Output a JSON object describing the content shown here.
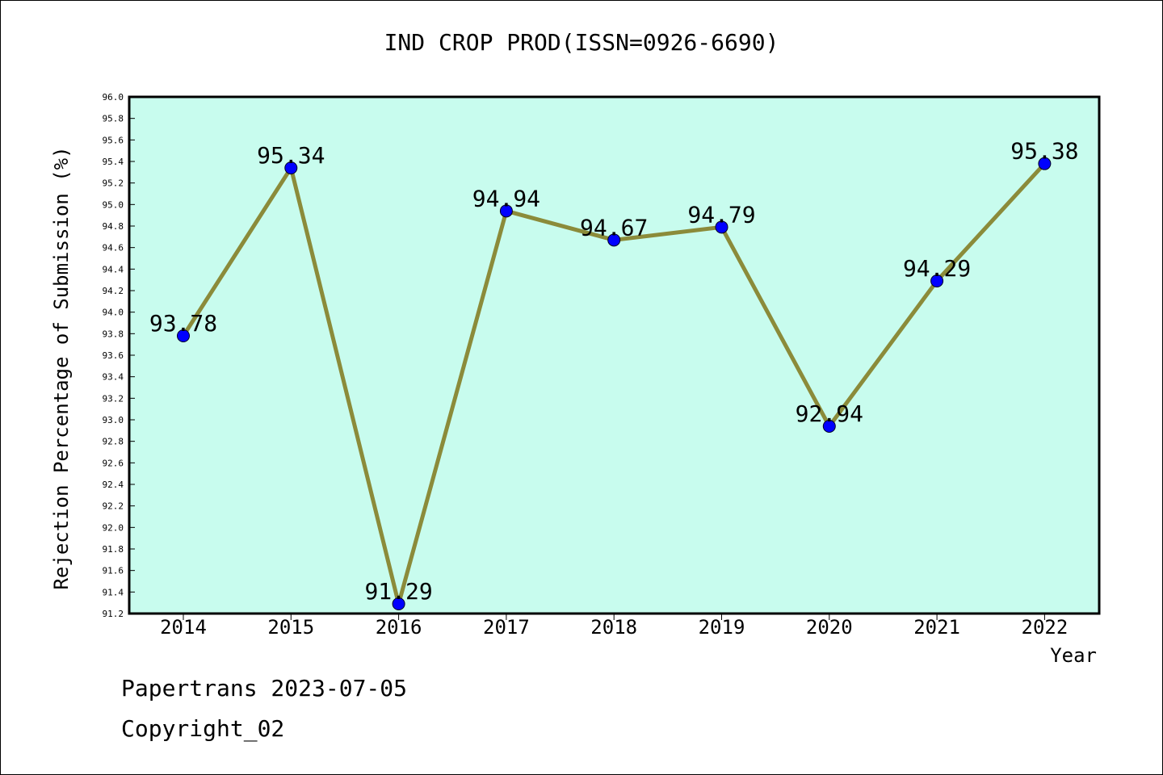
{
  "chart_data": {
    "type": "line",
    "title": "IND CROP PROD(ISSN=0926-6690)",
    "xlabel": "Year",
    "ylabel": "Rejection Percentage of Submission (%)",
    "categories": [
      "2014",
      "2015",
      "2016",
      "2017",
      "2018",
      "2019",
      "2020",
      "2021",
      "2022"
    ],
    "series": [
      {
        "values": [
          93.78,
          95.34,
          91.29,
          94.94,
          94.67,
          94.79,
          92.94,
          94.29,
          95.38
        ]
      }
    ],
    "data_labels": [
      "93.78",
      "95.34",
      "91.29",
      "94.94",
      "94.67",
      "94.79",
      "92.94",
      "94.29",
      "95.38"
    ],
    "ylim": [
      91.2,
      96.0
    ],
    "yticks": [
      "91.2",
      "91.4",
      "91.6",
      "91.8",
      "92.0",
      "92.2",
      "92.4",
      "92.6",
      "92.8",
      "93.0",
      "93.2",
      "93.4",
      "93.6",
      "93.8",
      "94.0",
      "94.2",
      "94.4",
      "94.6",
      "94.8",
      "95.0",
      "95.2",
      "95.4",
      "95.6",
      "95.8",
      "96.0"
    ],
    "grid": false,
    "colors": {
      "plot_background": "#c8fcee",
      "line": "#8b8b3a",
      "marker": "#0000ff"
    }
  },
  "footer": {
    "line1": "Papertrans 2023-07-05",
    "line2": "Copyright_02"
  }
}
